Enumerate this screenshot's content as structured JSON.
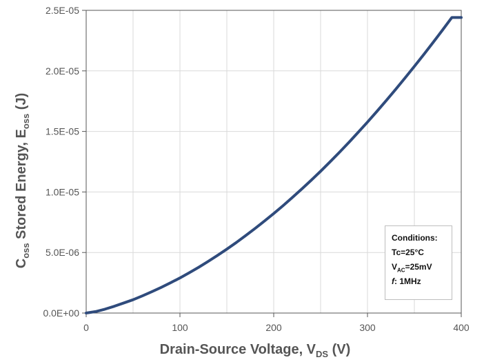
{
  "chart_data": {
    "type": "line",
    "title": "",
    "xlabel": {
      "main": "Drain-Source Voltage, V",
      "sub": "DS",
      "unit": " (V)"
    },
    "ylabel": {
      "pre": "C",
      "sub1": "oss",
      "mid": " Stored Energy, E",
      "sub2": "oss",
      "unit": " (J)"
    },
    "xlim": [
      0,
      400
    ],
    "ylim": [
      0,
      2.5e-05
    ],
    "x_ticks": [
      0,
      100,
      200,
      300,
      400
    ],
    "x_tick_labels": [
      "0",
      "100",
      "200",
      "300",
      "400"
    ],
    "y_ticks": [
      0,
      5e-06,
      1e-05,
      1.5e-05,
      2e-05,
      2.5e-05
    ],
    "y_tick_labels": [
      "0.0E+00",
      "5.0E-06",
      "1.0E-05",
      "1.5E-05",
      "2.0E-05",
      "2.5E-05"
    ],
    "grid": true,
    "series_color": "#2f4b7c",
    "series": [
      {
        "x": [
          0,
          10,
          20,
          30,
          40,
          50,
          60,
          70,
          80,
          90,
          100,
          110,
          120,
          130,
          140,
          150,
          160,
          170,
          180,
          190,
          200,
          210,
          220,
          230,
          240,
          250,
          260,
          270,
          280,
          290,
          300,
          310,
          320,
          330,
          340,
          350,
          360,
          370,
          380,
          390,
          400
        ],
        "y": [
          0,
          1.2e-07,
          3.2e-07,
          5.6e-07,
          8.3e-07,
          1.1e-06,
          1.42e-06,
          1.76e-06,
          2.12e-06,
          2.5e-06,
          2.9e-06,
          3.33e-06,
          3.78e-06,
          4.26e-06,
          4.76e-06,
          5.28e-06,
          5.82e-06,
          6.39e-06,
          6.98e-06,
          7.59e-06,
          8.22e-06,
          8.87e-06,
          9.55e-06,
          1.025e-05,
          1.097e-05,
          1.171e-05,
          1.248e-05,
          1.327e-05,
          1.408e-05,
          1.492e-05,
          1.577e-05,
          1.665e-05,
          1.755e-05,
          1.847e-05,
          1.941e-05,
          2.037e-05,
          2.135e-05,
          2.235e-05,
          2.337e-05,
          2.441e-05,
          2.441e-05
        ]
      }
    ]
  },
  "conditions": {
    "title": "Conditions:",
    "tc": "Tc=25°C",
    "vac_pre": "V",
    "vac_sub": "AC",
    "vac_post": "=25mV",
    "f_label": "f",
    "f_value": ": 1MHz"
  }
}
